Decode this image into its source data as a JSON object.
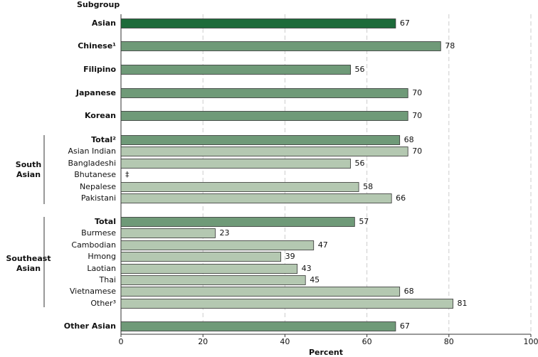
{
  "chart_data": {
    "type": "bar",
    "orientation": "horizontal",
    "header": "Subgroup",
    "x_label": "Percent",
    "categories": [
      "Asian",
      "Chinese¹",
      "Filipino",
      "Japanese",
      "Korean",
      "Total²",
      "Asian Indian",
      "Bangladeshi",
      "Bhutanese",
      "Nepalese",
      "Pakistani",
      "Total",
      "Burmese",
      "Cambodian",
      "Hmong",
      "Laotian",
      "Thai",
      "Vietnamese",
      "Other³",
      "Other Asian"
    ],
    "values": [
      67,
      78,
      56,
      70,
      70,
      68,
      70,
      56,
      null,
      58,
      66,
      57,
      23,
      47,
      39,
      43,
      45,
      68,
      81,
      67
    ],
    "value_labels": [
      "67",
      "78",
      "56",
      "70",
      "70",
      "68",
      "70",
      "56",
      "‡",
      "58",
      "66",
      "57",
      "23",
      "47",
      "39",
      "43",
      "45",
      "68",
      "81",
      "67"
    ],
    "colors": [
      "#1d6b3a",
      "#6f9a78",
      "#6f9a78",
      "#6f9a78",
      "#6f9a78",
      "#6f9a78",
      "#b4c8b1",
      "#b4c8b1",
      "#b4c8b1",
      "#b4c8b1",
      "#b4c8b1",
      "#6f9a78",
      "#b4c8b1",
      "#b4c8b1",
      "#b4c8b1",
      "#b4c8b1",
      "#b4c8b1",
      "#b4c8b1",
      "#b4c8b1",
      "#6f9a78"
    ],
    "groups": [
      "South Asian",
      "Southeast Asian"
    ],
    "xlim": [
      0,
      100
    ],
    "xticks": [
      0,
      20,
      40,
      60,
      80,
      100
    ],
    "grid": true
  }
}
